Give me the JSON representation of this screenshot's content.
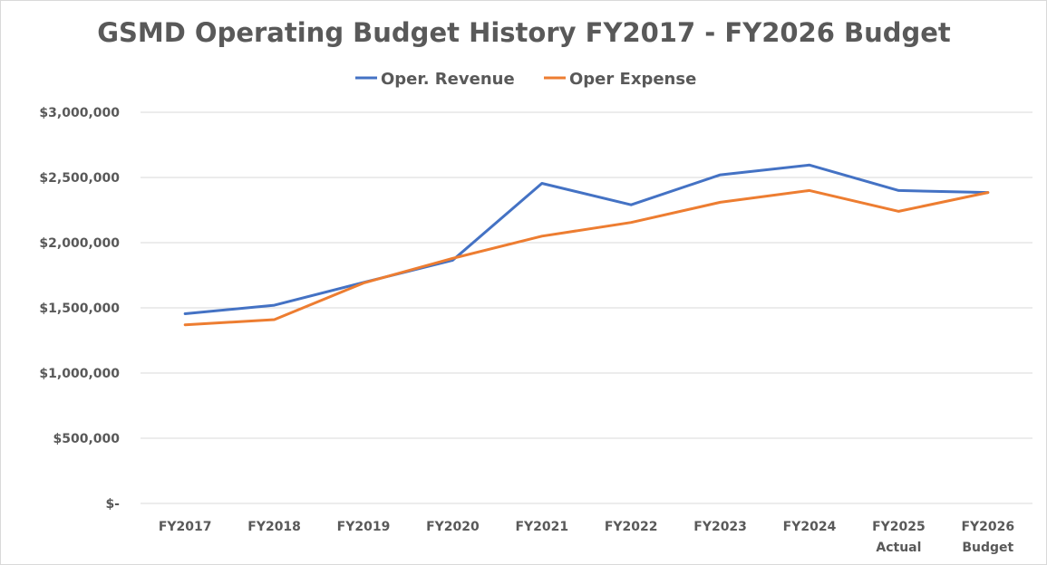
{
  "chart_data": {
    "type": "line",
    "title": "GSMD Operating Budget History FY2017 - FY2026 Budget",
    "xlabel": "",
    "ylabel": "",
    "categories": [
      [
        "FY2017"
      ],
      [
        "FY2018"
      ],
      [
        "FY2019"
      ],
      [
        "FY2020"
      ],
      [
        "FY2021"
      ],
      [
        "FY2022"
      ],
      [
        "FY2023"
      ],
      [
        "FY2024"
      ],
      [
        "FY2025",
        "Actual"
      ],
      [
        "FY2026",
        "Budget"
      ]
    ],
    "series": [
      {
        "name": "Oper. Revenue",
        "color": "#4472c4",
        "values": [
          1455000,
          1520000,
          1695000,
          1865000,
          2455000,
          2290000,
          2520000,
          2595000,
          2400000,
          2385000
        ]
      },
      {
        "name": "Oper Expense",
        "color": "#ed7d31",
        "values": [
          1370000,
          1410000,
          1690000,
          1880000,
          2050000,
          2155000,
          2310000,
          2400000,
          2240000,
          2385000
        ]
      }
    ],
    "ylim": [
      0,
      3000000
    ],
    "yticks": [
      0,
      500000,
      1000000,
      1500000,
      2000000,
      2500000,
      3000000
    ],
    "ytick_labels": [
      "$-",
      "$500,000",
      "$1,000,000",
      "$1,500,000",
      "$2,000,000",
      "$2,500,000",
      "$3,000,000"
    ],
    "grid": true,
    "legend_position": "top"
  }
}
